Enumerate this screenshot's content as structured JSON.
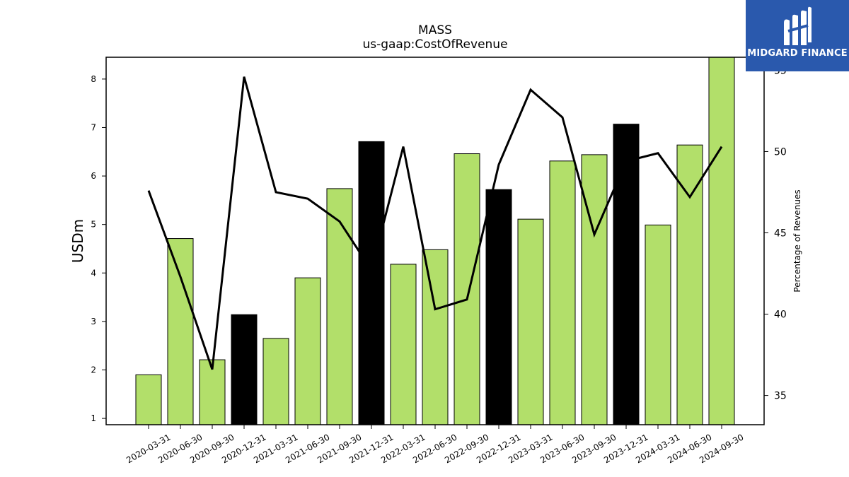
{
  "chart_data": {
    "type": "bar",
    "title": "MASS",
    "subtitle": "us-gaap:CostOfRevenue",
    "ylabel": "USDm",
    "y2label": "Percentage of Revenues",
    "ylim": [
      0.87,
      8.45
    ],
    "y2lim": [
      33.2,
      55.8
    ],
    "yticks": [
      1,
      2,
      3,
      4,
      5,
      6,
      7,
      8
    ],
    "y2ticks": [
      35,
      40,
      45,
      50,
      55
    ],
    "categories": [
      "2020-03-31",
      "2020-06-30",
      "2020-09-30",
      "2020-12-31",
      "2021-03-31",
      "2021-06-30",
      "2021-09-30",
      "2021-12-31",
      "2022-03-31",
      "2022-06-30",
      "2022-09-30",
      "2022-12-31",
      "2023-03-31",
      "2023-06-30",
      "2023-09-30",
      "2023-12-31",
      "2024-03-31",
      "2024-06-30",
      "2024-09-30"
    ],
    "series": [
      {
        "kind": "bar",
        "values": [
          1.9,
          4.71,
          2.21,
          3.14,
          2.65,
          3.9,
          5.74,
          6.71,
          4.18,
          4.48,
          6.46,
          5.72,
          5.11,
          6.31,
          6.44,
          7.07,
          4.99,
          6.64,
          8.45
        ],
        "colors": [
          "#b2df6a",
          "#b2df6a",
          "#b2df6a",
          "#000000",
          "#b2df6a",
          "#b2df6a",
          "#b2df6a",
          "#000000",
          "#b2df6a",
          "#b2df6a",
          "#b2df6a",
          "#000000",
          "#b2df6a",
          "#b2df6a",
          "#b2df6a",
          "#000000",
          "#b2df6a",
          "#b2df6a",
          "#b2df6a"
        ]
      },
      {
        "kind": "line",
        "axis": "right",
        "color": "#000000",
        "values": [
          47.6,
          42.3,
          36.6,
          54.6,
          47.5,
          47.1,
          45.7,
          42.7,
          50.3,
          40.3,
          40.9,
          49.2,
          53.8,
          52.1,
          44.9,
          49.4,
          49.9,
          47.2,
          50.3
        ]
      }
    ],
    "grid": false,
    "legend": "none"
  },
  "logo": {
    "text": "MIDGARD FINANCE",
    "brand_color": "#2a59ad"
  }
}
